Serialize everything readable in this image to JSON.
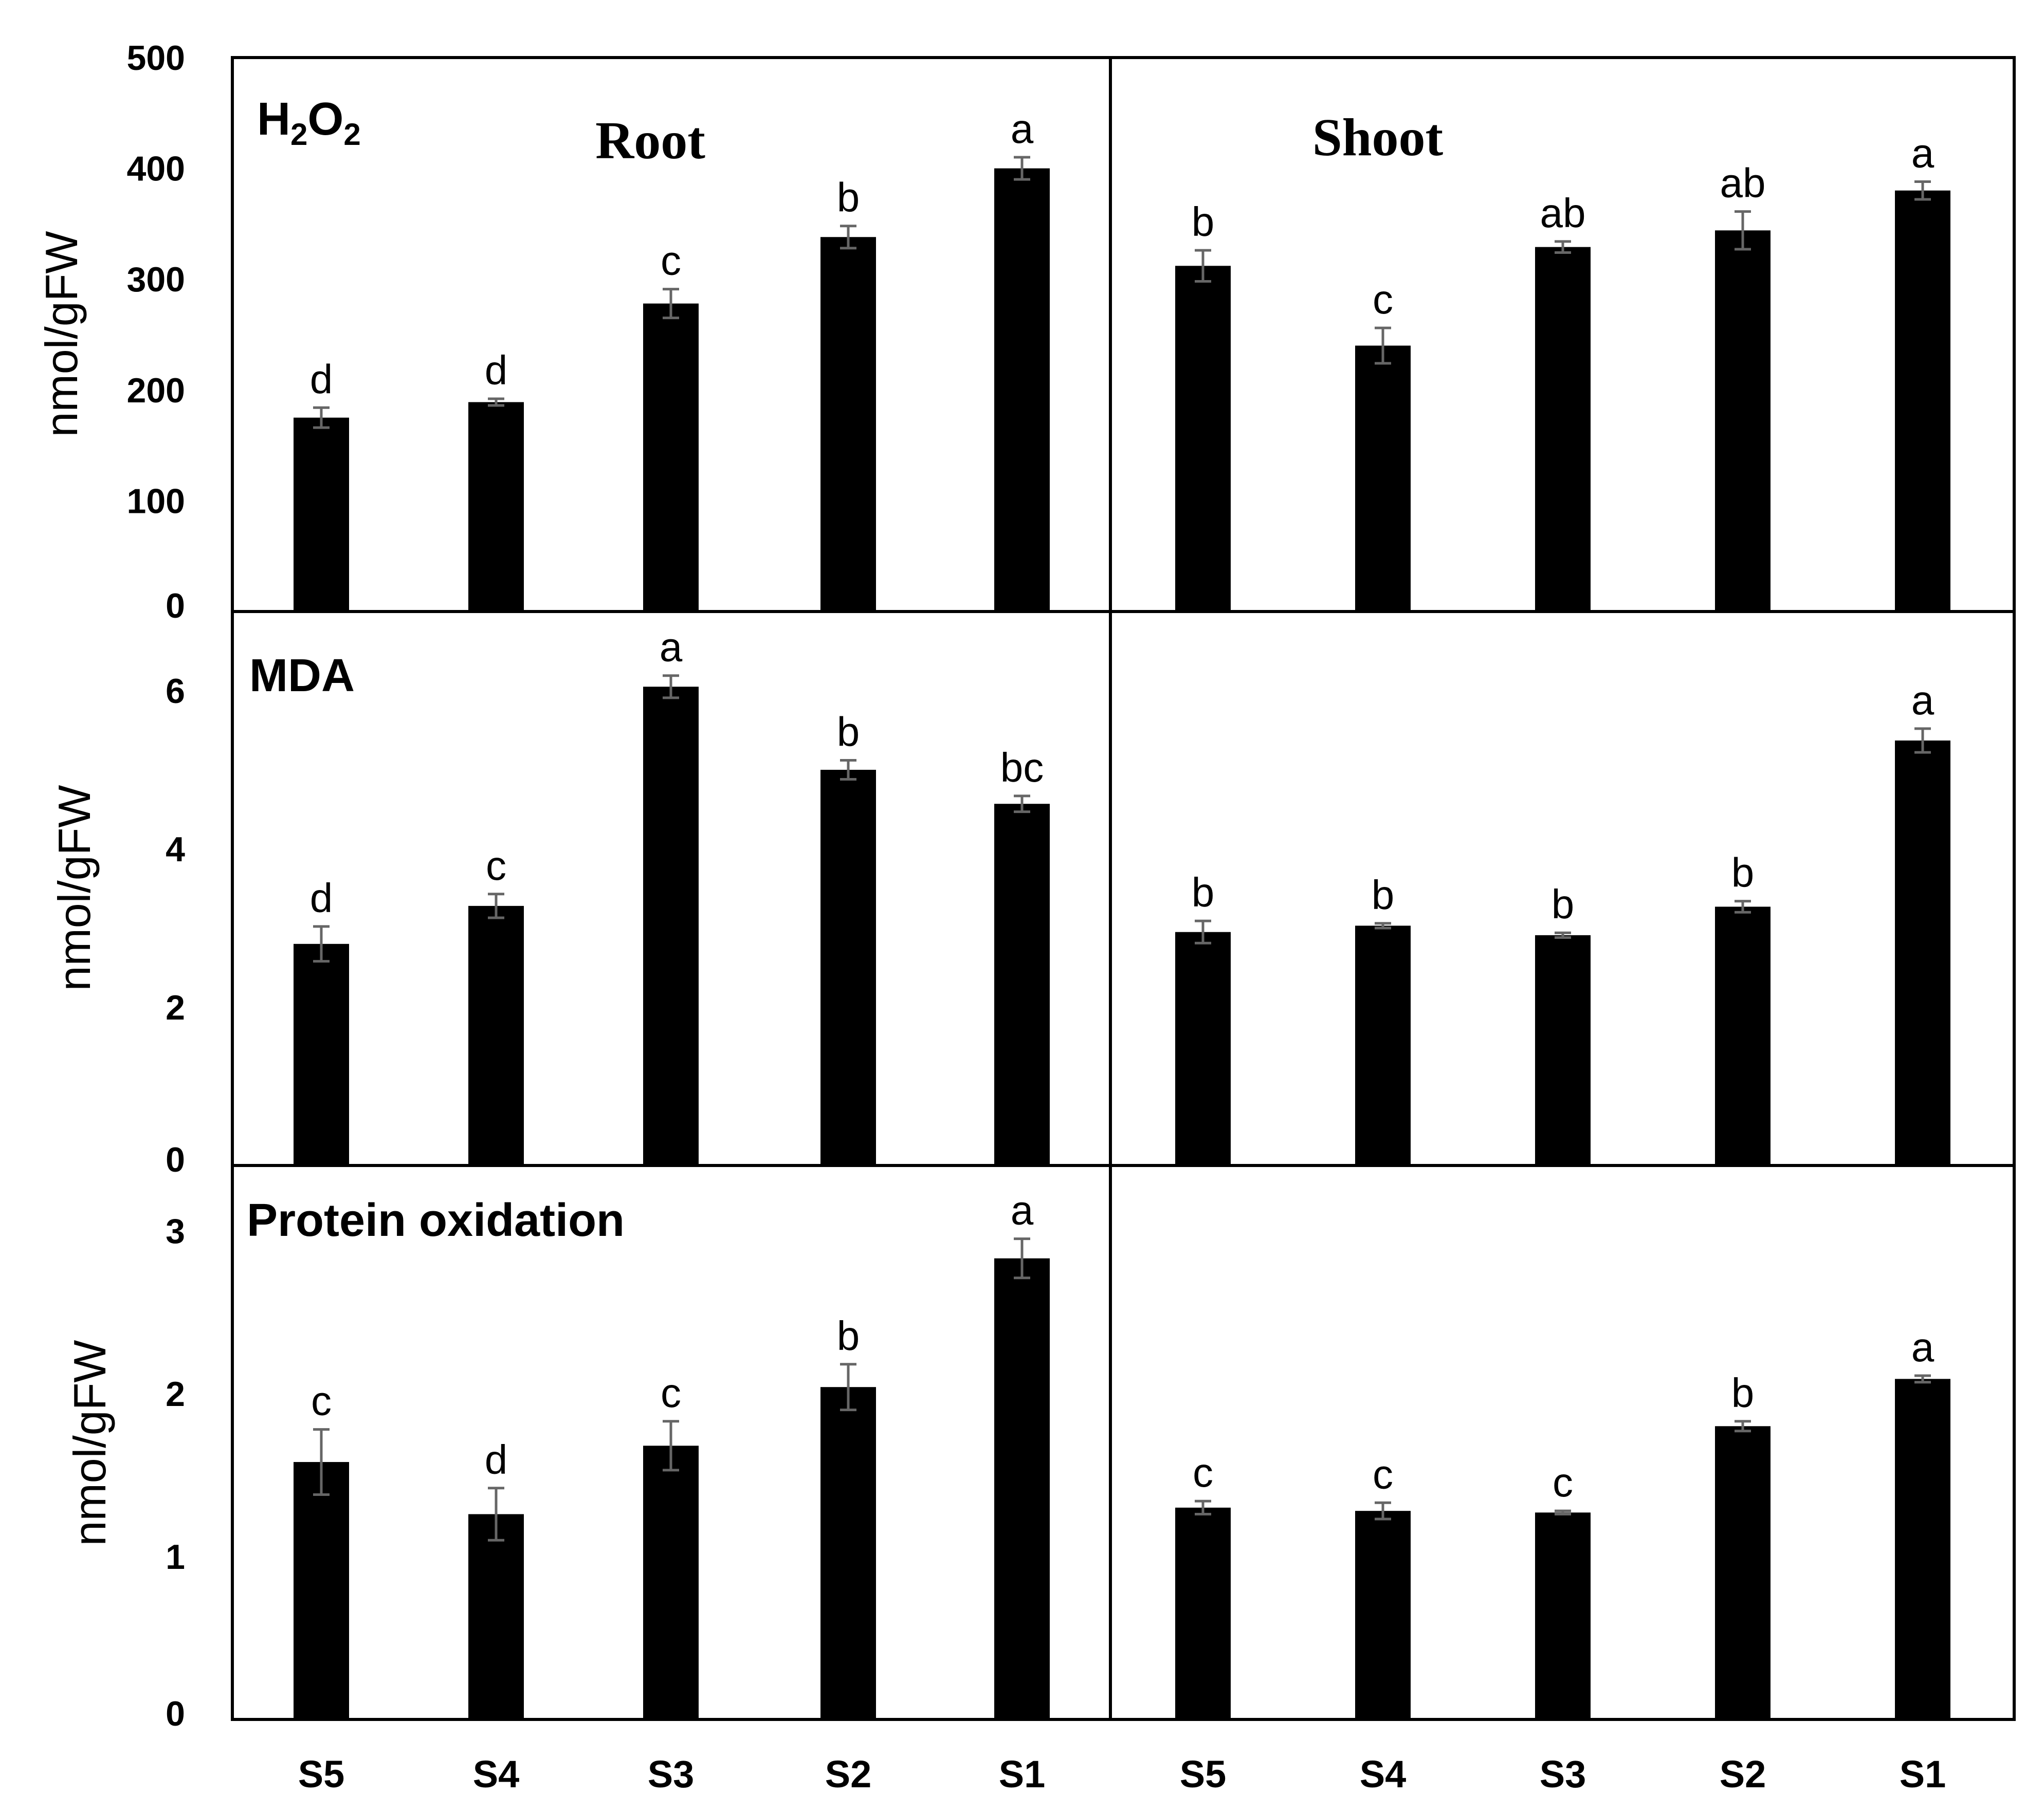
{
  "chart_data": {
    "type": "bar",
    "categories": [
      "S5",
      "S4",
      "S3",
      "S2",
      "S1"
    ],
    "columns": [
      "Root",
      "Shoot"
    ],
    "ylabel": "nmol/gFW",
    "panels": [
      {
        "id": "h2o2",
        "title": "H2O2",
        "ylim": [
          0,
          500
        ],
        "ticks": [
          0,
          100,
          200,
          300,
          400,
          500
        ],
        "tick_labels": [
          "0",
          "100",
          "200",
          "300",
          "400",
          "500"
        ],
        "root": {
          "values": [
            175,
            189,
            278,
            338,
            400
          ],
          "errors": [
            9,
            3,
            13,
            10,
            10
          ],
          "letters": [
            "d",
            "d",
            "c",
            "b",
            "a"
          ]
        },
        "shoot": {
          "values": [
            312,
            240,
            329,
            344,
            380
          ],
          "errors": [
            14,
            16,
            5,
            17,
            8
          ],
          "letters": [
            "b",
            "c",
            "ab",
            "ab",
            "a"
          ]
        }
      },
      {
        "id": "mda",
        "title": "MDA",
        "ylim": [
          0,
          7
        ],
        "ticks": [
          0,
          2,
          4,
          6
        ],
        "tick_labels": [
          "0",
          "2",
          "4",
          "6"
        ],
        "root": {
          "values": [
            2.8,
            3.28,
            6.05,
            5.0,
            4.57
          ],
          "errors": [
            0.22,
            0.15,
            0.14,
            0.12,
            0.1
          ],
          "letters": [
            "d",
            "c",
            "a",
            "b",
            "bc"
          ]
        },
        "shoot": {
          "values": [
            2.95,
            3.03,
            2.91,
            3.27,
            5.37
          ],
          "errors": [
            0.14,
            0.03,
            0.03,
            0.07,
            0.15
          ],
          "letters": [
            "b",
            "b",
            "b",
            "b",
            "a"
          ]
        }
      },
      {
        "id": "protein",
        "title": "Protein oxidation",
        "ylim": [
          0,
          3.4
        ],
        "ticks": [
          0,
          1,
          2,
          3
        ],
        "tick_labels": [
          "0",
          "1",
          "2",
          "3"
        ],
        "root": {
          "values": [
            1.58,
            1.26,
            1.68,
            2.04,
            2.83
          ],
          "errors": [
            0.2,
            0.16,
            0.15,
            0.14,
            0.12
          ],
          "letters": [
            "c",
            "d",
            "c",
            "b",
            "a"
          ]
        },
        "shoot": {
          "values": [
            1.3,
            1.28,
            1.27,
            1.8,
            2.09
          ],
          "errors": [
            0.04,
            0.05,
            0.01,
            0.03,
            0.02
          ],
          "letters": [
            "c",
            "c",
            "c",
            "b",
            "a"
          ]
        }
      }
    ]
  }
}
